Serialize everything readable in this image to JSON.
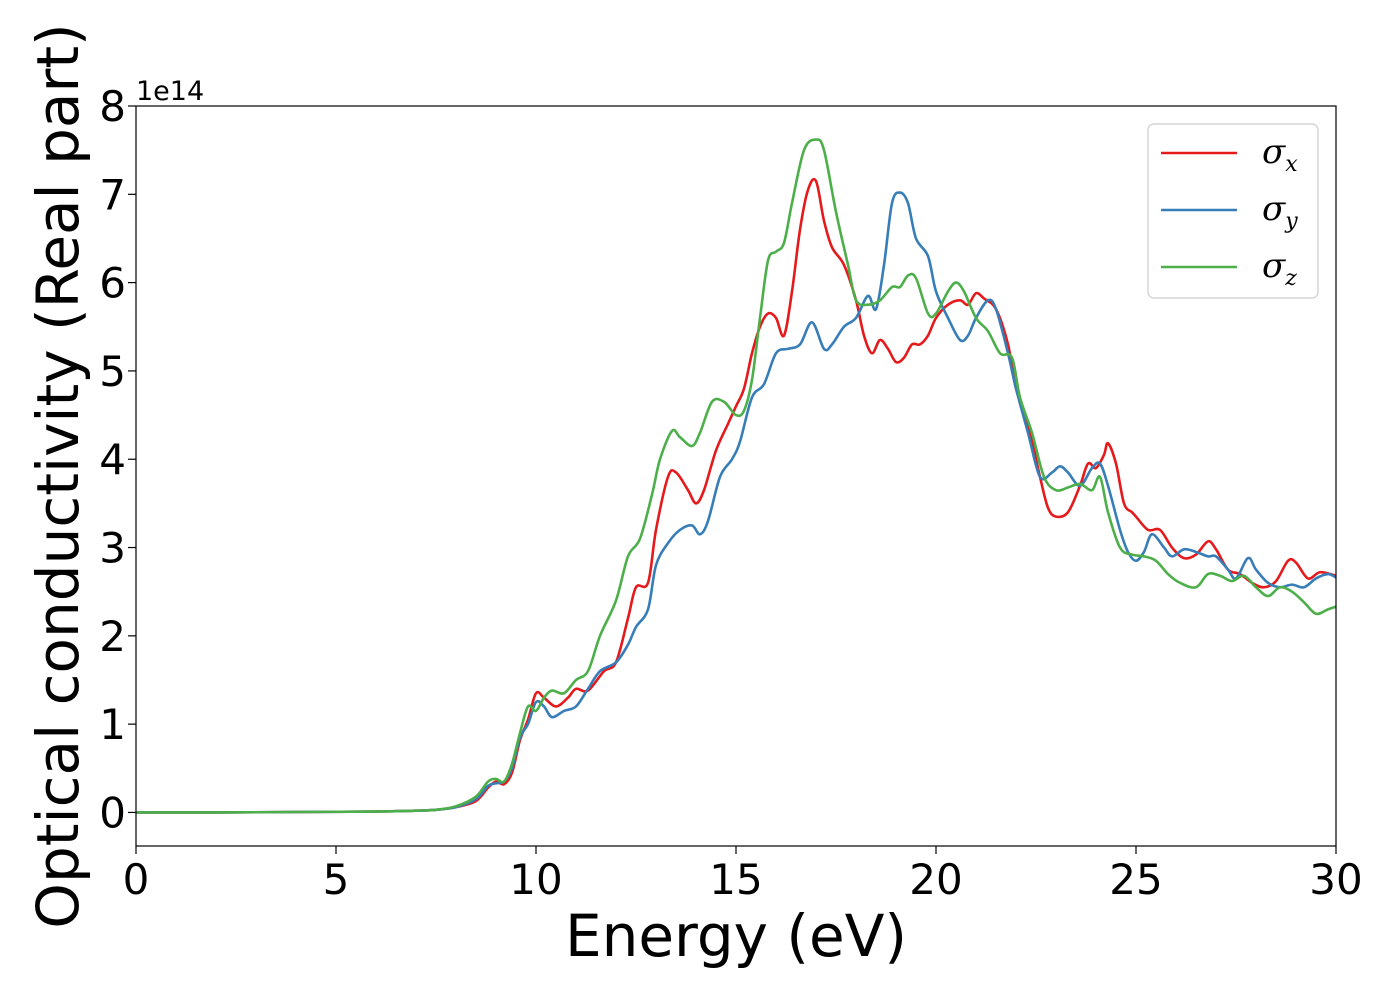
{
  "chart_data": {
    "type": "line",
    "xlabel": "Energy (eV)",
    "ylabel": "Optical conductivity (Real part)",
    "y_offset_text": "1e14",
    "xlim": [
      0,
      30
    ],
    "ylim": [
      -0.38,
      8
    ],
    "x_ticks": [
      0,
      5,
      10,
      15,
      20,
      25,
      30
    ],
    "y_ticks": [
      0,
      1,
      2,
      3,
      4,
      5,
      6,
      7,
      8
    ],
    "grid": false,
    "legend_position": "top-right",
    "series": [
      {
        "name": "σx",
        "legend_symbol": "σ",
        "legend_subscript": "x",
        "color": "#e41a1c",
        "points": [
          [
            0,
            0
          ],
          [
            2,
            0
          ],
          [
            4,
            0.005
          ],
          [
            6,
            0.01
          ],
          [
            7,
            0.02
          ],
          [
            7.5,
            0.03
          ],
          [
            8,
            0.06
          ],
          [
            8.5,
            0.13
          ],
          [
            8.8,
            0.28
          ],
          [
            9.0,
            0.35
          ],
          [
            9.2,
            0.32
          ],
          [
            9.4,
            0.45
          ],
          [
            9.6,
            0.82
          ],
          [
            9.8,
            1.05
          ],
          [
            10.0,
            1.35
          ],
          [
            10.2,
            1.3
          ],
          [
            10.5,
            1.2
          ],
          [
            10.8,
            1.3
          ],
          [
            11.0,
            1.4
          ],
          [
            11.3,
            1.38
          ],
          [
            11.7,
            1.6
          ],
          [
            12.0,
            1.7
          ],
          [
            12.3,
            2.2
          ],
          [
            12.5,
            2.55
          ],
          [
            12.8,
            2.6
          ],
          [
            13.0,
            3.2
          ],
          [
            13.3,
            3.8
          ],
          [
            13.5,
            3.85
          ],
          [
            13.8,
            3.65
          ],
          [
            14.0,
            3.5
          ],
          [
            14.2,
            3.65
          ],
          [
            14.5,
            4.1
          ],
          [
            14.8,
            4.4
          ],
          [
            15.0,
            4.6
          ],
          [
            15.2,
            4.8
          ],
          [
            15.4,
            5.2
          ],
          [
            15.6,
            5.5
          ],
          [
            15.8,
            5.65
          ],
          [
            16.0,
            5.6
          ],
          [
            16.2,
            5.4
          ],
          [
            16.4,
            5.9
          ],
          [
            16.6,
            6.6
          ],
          [
            16.8,
            7.05
          ],
          [
            17.0,
            7.15
          ],
          [
            17.2,
            6.7
          ],
          [
            17.4,
            6.4
          ],
          [
            17.7,
            6.2
          ],
          [
            18.0,
            5.8
          ],
          [
            18.2,
            5.4
          ],
          [
            18.4,
            5.2
          ],
          [
            18.6,
            5.35
          ],
          [
            18.8,
            5.25
          ],
          [
            19.0,
            5.1
          ],
          [
            19.2,
            5.15
          ],
          [
            19.4,
            5.3
          ],
          [
            19.6,
            5.3
          ],
          [
            19.8,
            5.4
          ],
          [
            20.0,
            5.6
          ],
          [
            20.3,
            5.75
          ],
          [
            20.6,
            5.8
          ],
          [
            20.8,
            5.75
          ],
          [
            21.0,
            5.88
          ],
          [
            21.2,
            5.82
          ],
          [
            21.5,
            5.7
          ],
          [
            21.8,
            5.3
          ],
          [
            22.0,
            4.8
          ],
          [
            22.3,
            4.4
          ],
          [
            22.6,
            3.8
          ],
          [
            22.8,
            3.45
          ],
          [
            23.0,
            3.35
          ],
          [
            23.3,
            3.4
          ],
          [
            23.6,
            3.7
          ],
          [
            23.8,
            3.95
          ],
          [
            24.0,
            3.9
          ],
          [
            24.2,
            4.05
          ],
          [
            24.3,
            4.18
          ],
          [
            24.5,
            3.95
          ],
          [
            24.7,
            3.5
          ],
          [
            24.9,
            3.4
          ],
          [
            25.0,
            3.35
          ],
          [
            25.3,
            3.2
          ],
          [
            25.6,
            3.2
          ],
          [
            25.9,
            3.0
          ],
          [
            26.2,
            2.88
          ],
          [
            26.5,
            2.92
          ],
          [
            26.8,
            3.07
          ],
          [
            27.0,
            2.98
          ],
          [
            27.3,
            2.75
          ],
          [
            27.6,
            2.7
          ],
          [
            27.9,
            2.6
          ],
          [
            28.2,
            2.55
          ],
          [
            28.5,
            2.62
          ],
          [
            28.8,
            2.85
          ],
          [
            29.0,
            2.83
          ],
          [
            29.3,
            2.65
          ],
          [
            29.6,
            2.72
          ],
          [
            30,
            2.68
          ]
        ]
      },
      {
        "name": "σy",
        "legend_symbol": "σ",
        "legend_subscript": "y",
        "color": "#377eb8",
        "points": [
          [
            0,
            0
          ],
          [
            2,
            0
          ],
          [
            4,
            0.005
          ],
          [
            6,
            0.01
          ],
          [
            7,
            0.02
          ],
          [
            7.5,
            0.03
          ],
          [
            8,
            0.06
          ],
          [
            8.5,
            0.15
          ],
          [
            8.8,
            0.3
          ],
          [
            9.0,
            0.33
          ],
          [
            9.2,
            0.35
          ],
          [
            9.4,
            0.5
          ],
          [
            9.6,
            0.85
          ],
          [
            9.8,
            1.0
          ],
          [
            10.0,
            1.25
          ],
          [
            10.2,
            1.2
          ],
          [
            10.4,
            1.08
          ],
          [
            10.7,
            1.15
          ],
          [
            11.0,
            1.2
          ],
          [
            11.3,
            1.4
          ],
          [
            11.6,
            1.6
          ],
          [
            12.0,
            1.7
          ],
          [
            12.3,
            1.9
          ],
          [
            12.5,
            2.1
          ],
          [
            12.8,
            2.3
          ],
          [
            13.0,
            2.8
          ],
          [
            13.3,
            3.05
          ],
          [
            13.6,
            3.2
          ],
          [
            13.9,
            3.25
          ],
          [
            14.1,
            3.15
          ],
          [
            14.3,
            3.3
          ],
          [
            14.6,
            3.8
          ],
          [
            14.9,
            4.0
          ],
          [
            15.1,
            4.2
          ],
          [
            15.4,
            4.7
          ],
          [
            15.7,
            4.85
          ],
          [
            16.0,
            5.2
          ],
          [
            16.3,
            5.25
          ],
          [
            16.6,
            5.3
          ],
          [
            16.9,
            5.55
          ],
          [
            17.2,
            5.25
          ],
          [
            17.4,
            5.3
          ],
          [
            17.7,
            5.5
          ],
          [
            18.0,
            5.6
          ],
          [
            18.3,
            5.85
          ],
          [
            18.5,
            5.7
          ],
          [
            18.7,
            6.2
          ],
          [
            18.9,
            6.9
          ],
          [
            19.1,
            7.02
          ],
          [
            19.3,
            6.9
          ],
          [
            19.5,
            6.5
          ],
          [
            19.8,
            6.3
          ],
          [
            20.0,
            5.9
          ],
          [
            20.3,
            5.6
          ],
          [
            20.6,
            5.35
          ],
          [
            20.8,
            5.4
          ],
          [
            21.0,
            5.6
          ],
          [
            21.3,
            5.8
          ],
          [
            21.5,
            5.7
          ],
          [
            21.8,
            5.2
          ],
          [
            22.0,
            4.8
          ],
          [
            22.3,
            4.3
          ],
          [
            22.6,
            3.8
          ],
          [
            22.9,
            3.85
          ],
          [
            23.1,
            3.92
          ],
          [
            23.3,
            3.85
          ],
          [
            23.6,
            3.7
          ],
          [
            23.9,
            3.9
          ],
          [
            24.1,
            3.95
          ],
          [
            24.3,
            3.7
          ],
          [
            24.6,
            3.2
          ],
          [
            24.8,
            2.95
          ],
          [
            25.0,
            2.85
          ],
          [
            25.2,
            2.95
          ],
          [
            25.4,
            3.15
          ],
          [
            25.7,
            3.0
          ],
          [
            25.9,
            2.9
          ],
          [
            26.2,
            2.98
          ],
          [
            26.5,
            2.95
          ],
          [
            26.8,
            2.9
          ],
          [
            27.0,
            2.9
          ],
          [
            27.3,
            2.75
          ],
          [
            27.5,
            2.65
          ],
          [
            27.8,
            2.88
          ],
          [
            28.0,
            2.75
          ],
          [
            28.3,
            2.6
          ],
          [
            28.6,
            2.55
          ],
          [
            28.9,
            2.58
          ],
          [
            29.2,
            2.55
          ],
          [
            29.5,
            2.65
          ],
          [
            29.8,
            2.7
          ],
          [
            30,
            2.66
          ]
        ]
      },
      {
        "name": "σz",
        "legend_symbol": "σ",
        "legend_subscript": "z",
        "color": "#4daf4a",
        "points": [
          [
            0,
            0
          ],
          [
            2,
            0
          ],
          [
            4,
            0.005
          ],
          [
            6,
            0.01
          ],
          [
            7,
            0.02
          ],
          [
            7.5,
            0.03
          ],
          [
            8,
            0.07
          ],
          [
            8.5,
            0.18
          ],
          [
            8.8,
            0.35
          ],
          [
            9.0,
            0.38
          ],
          [
            9.2,
            0.35
          ],
          [
            9.4,
            0.55
          ],
          [
            9.6,
            0.9
          ],
          [
            9.8,
            1.2
          ],
          [
            10.0,
            1.15
          ],
          [
            10.2,
            1.3
          ],
          [
            10.4,
            1.38
          ],
          [
            10.7,
            1.35
          ],
          [
            11.0,
            1.5
          ],
          [
            11.3,
            1.6
          ],
          [
            11.6,
            2.0
          ],
          [
            12.0,
            2.4
          ],
          [
            12.3,
            2.9
          ],
          [
            12.6,
            3.1
          ],
          [
            12.9,
            3.6
          ],
          [
            13.1,
            4.0
          ],
          [
            13.4,
            4.32
          ],
          [
            13.6,
            4.25
          ],
          [
            13.9,
            4.15
          ],
          [
            14.1,
            4.3
          ],
          [
            14.4,
            4.65
          ],
          [
            14.7,
            4.65
          ],
          [
            15.0,
            4.5
          ],
          [
            15.2,
            4.55
          ],
          [
            15.4,
            4.9
          ],
          [
            15.6,
            5.6
          ],
          [
            15.8,
            6.25
          ],
          [
            16.0,
            6.35
          ],
          [
            16.2,
            6.45
          ],
          [
            16.4,
            6.9
          ],
          [
            16.7,
            7.5
          ],
          [
            17.0,
            7.62
          ],
          [
            17.2,
            7.5
          ],
          [
            17.5,
            6.8
          ],
          [
            17.8,
            6.2
          ],
          [
            18.0,
            5.8
          ],
          [
            18.3,
            5.75
          ],
          [
            18.6,
            5.8
          ],
          [
            18.9,
            5.95
          ],
          [
            19.1,
            5.95
          ],
          [
            19.3,
            6.08
          ],
          [
            19.5,
            6.05
          ],
          [
            19.8,
            5.65
          ],
          [
            20.0,
            5.65
          ],
          [
            20.3,
            5.9
          ],
          [
            20.5,
            6.0
          ],
          [
            20.7,
            5.9
          ],
          [
            21.0,
            5.6
          ],
          [
            21.3,
            5.45
          ],
          [
            21.6,
            5.2
          ],
          [
            21.9,
            5.15
          ],
          [
            22.1,
            4.7
          ],
          [
            22.4,
            4.3
          ],
          [
            22.7,
            3.8
          ],
          [
            23.0,
            3.65
          ],
          [
            23.3,
            3.68
          ],
          [
            23.6,
            3.72
          ],
          [
            23.9,
            3.65
          ],
          [
            24.1,
            3.8
          ],
          [
            24.3,
            3.4
          ],
          [
            24.6,
            3.0
          ],
          [
            24.9,
            2.92
          ],
          [
            25.2,
            2.9
          ],
          [
            25.5,
            2.85
          ],
          [
            25.8,
            2.7
          ],
          [
            26.1,
            2.6
          ],
          [
            26.5,
            2.55
          ],
          [
            26.8,
            2.7
          ],
          [
            27.1,
            2.68
          ],
          [
            27.4,
            2.62
          ],
          [
            27.7,
            2.68
          ],
          [
            28.0,
            2.55
          ],
          [
            28.3,
            2.45
          ],
          [
            28.6,
            2.55
          ],
          [
            28.9,
            2.5
          ],
          [
            29.2,
            2.38
          ],
          [
            29.5,
            2.25
          ],
          [
            29.8,
            2.3
          ],
          [
            30,
            2.33
          ]
        ]
      }
    ]
  }
}
